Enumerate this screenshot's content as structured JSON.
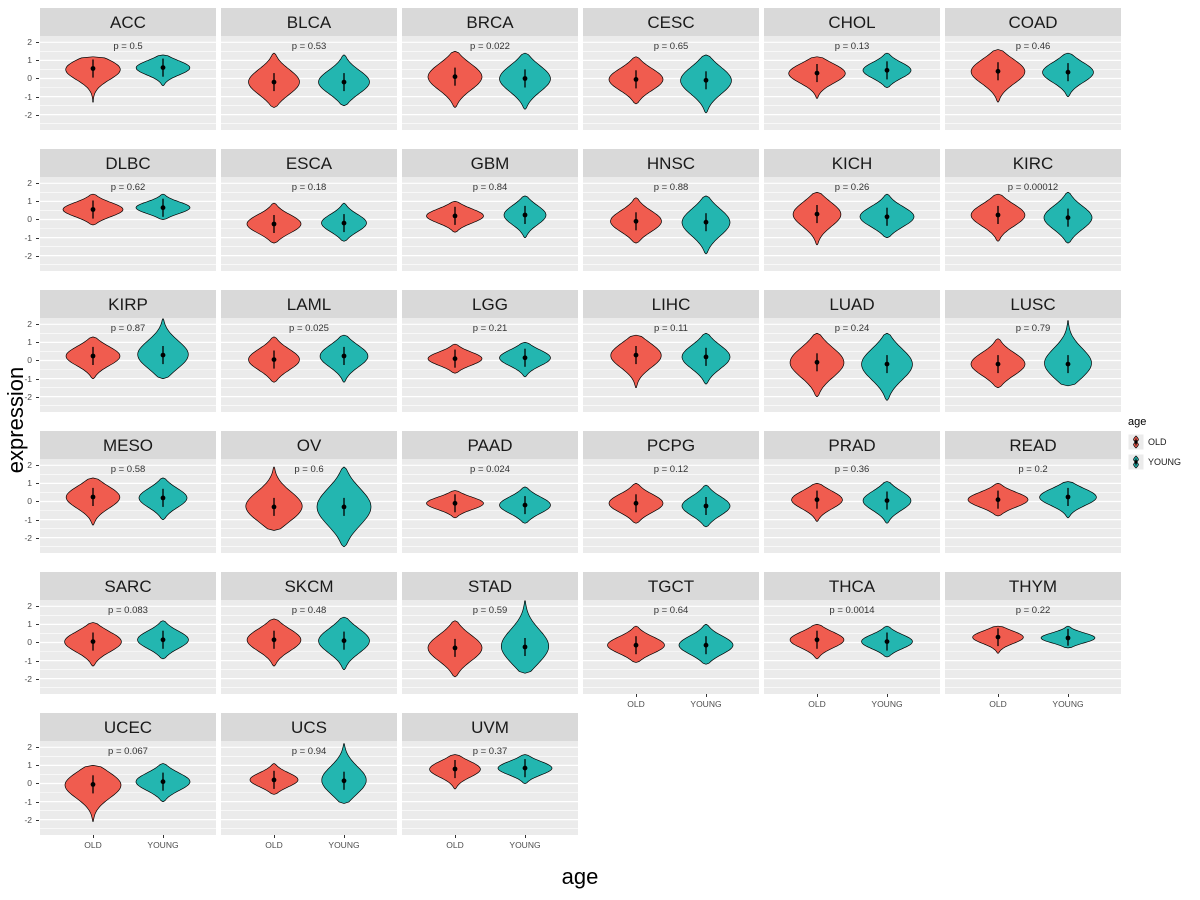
{
  "chart_data": {
    "type": "violin",
    "title": "",
    "xlabel": "age",
    "ylabel": "expression",
    "categories": [
      "OLD",
      "YOUNG"
    ],
    "yticks": [
      2,
      1,
      0,
      -1,
      -2
    ],
    "ylim": [
      -2.85,
      2.35
    ],
    "grid": true,
    "legend": {
      "title": "age",
      "position": "right",
      "entries": [
        {
          "label": "OLD",
          "color": "#F05C4F"
        },
        {
          "label": "YOUNG",
          "color": "#23B6B0"
        }
      ]
    },
    "colors": {
      "old": "#F05C4F",
      "young": "#23B6B0",
      "panel_bg": "#EBEBEB",
      "strip_bg": "#D9D9D9",
      "grid": "#FFFFFF"
    },
    "panels": [
      {
        "name": "ACC",
        "p_label": "p = 0.5",
        "old": {
          "med": 0.55,
          "lo": -1.3,
          "hi": 1.2,
          "w": 0.95
        },
        "young": {
          "med": 0.6,
          "lo": -0.4,
          "hi": 1.3,
          "w": 0.9
        }
      },
      {
        "name": "BLCA",
        "p_label": "p = 0.53",
        "old": {
          "med": -0.2,
          "lo": -1.6,
          "hi": 1.4,
          "w": 0.85
        },
        "young": {
          "med": -0.2,
          "lo": -1.5,
          "hi": 1.3,
          "w": 0.85
        }
      },
      {
        "name": "BRCA",
        "p_label": "p = 0.022",
        "old": {
          "med": 0.1,
          "lo": -1.6,
          "hi": 1.5,
          "w": 0.9
        },
        "young": {
          "med": 0.0,
          "lo": -1.7,
          "hi": 1.4,
          "w": 0.85
        }
      },
      {
        "name": "CESC",
        "p_label": "p = 0.65",
        "old": {
          "med": -0.05,
          "lo": -1.4,
          "hi": 1.2,
          "w": 0.9
        },
        "young": {
          "med": -0.1,
          "lo": -1.9,
          "hi": 1.3,
          "w": 0.85
        }
      },
      {
        "name": "CHOL",
        "p_label": "p = 0.13",
        "old": {
          "med": 0.3,
          "lo": -1.1,
          "hi": 1.2,
          "w": 0.95
        },
        "young": {
          "med": 0.45,
          "lo": -0.5,
          "hi": 1.4,
          "w": 0.8
        }
      },
      {
        "name": "COAD",
        "p_label": "p = 0.46",
        "old": {
          "med": 0.4,
          "lo": -1.3,
          "hi": 1.6,
          "w": 0.9
        },
        "young": {
          "med": 0.35,
          "lo": -1.0,
          "hi": 1.4,
          "w": 0.85
        }
      },
      {
        "name": "DLBC",
        "p_label": "p = 0.62",
        "old": {
          "med": 0.55,
          "lo": -0.3,
          "hi": 1.4,
          "w": 1.0
        },
        "young": {
          "med": 0.65,
          "lo": 0.0,
          "hi": 1.4,
          "w": 0.9
        }
      },
      {
        "name": "ESCA",
        "p_label": "p = 0.18",
        "old": {
          "med": -0.25,
          "lo": -1.3,
          "hi": 0.9,
          "w": 0.9
        },
        "young": {
          "med": -0.2,
          "lo": -1.2,
          "hi": 0.9,
          "w": 0.75
        }
      },
      {
        "name": "GBM",
        "p_label": "p = 0.84",
        "old": {
          "med": 0.2,
          "lo": -0.7,
          "hi": 1.0,
          "w": 0.95
        },
        "young": {
          "med": 0.25,
          "lo": -1.0,
          "hi": 1.3,
          "w": 0.7
        }
      },
      {
        "name": "HNSC",
        "p_label": "p = 0.88",
        "old": {
          "med": -0.1,
          "lo": -1.3,
          "hi": 1.2,
          "w": 0.85
        },
        "young": {
          "med": -0.15,
          "lo": -1.9,
          "hi": 1.3,
          "w": 0.8
        }
      },
      {
        "name": "KICH",
        "p_label": "p = 0.26",
        "old": {
          "med": 0.3,
          "lo": -1.4,
          "hi": 1.5,
          "w": 0.8
        },
        "young": {
          "med": 0.15,
          "lo": -1.0,
          "hi": 1.4,
          "w": 0.9
        }
      },
      {
        "name": "KIRC",
        "p_label": "p = 0.00012",
        "old": {
          "med": 0.25,
          "lo": -1.2,
          "hi": 1.4,
          "w": 0.9
        },
        "young": {
          "med": 0.1,
          "lo": -1.3,
          "hi": 1.5,
          "w": 0.8
        }
      },
      {
        "name": "KIRP",
        "p_label": "p = 0.87",
        "old": {
          "med": 0.25,
          "lo": -1.0,
          "hi": 1.3,
          "w": 0.9
        },
        "young": {
          "med": 0.3,
          "lo": -1.0,
          "hi": 2.3,
          "w": 0.85
        }
      },
      {
        "name": "LAML",
        "p_label": "p = 0.025",
        "old": {
          "med": 0.05,
          "lo": -1.2,
          "hi": 1.3,
          "w": 0.85
        },
        "young": {
          "med": 0.25,
          "lo": -1.2,
          "hi": 1.4,
          "w": 0.8
        }
      },
      {
        "name": "LGG",
        "p_label": "p = 0.21",
        "old": {
          "med": 0.1,
          "lo": -0.7,
          "hi": 0.9,
          "w": 0.9
        },
        "young": {
          "med": 0.15,
          "lo": -0.9,
          "hi": 1.0,
          "w": 0.85
        }
      },
      {
        "name": "LIHC",
        "p_label": "p = 0.11",
        "old": {
          "med": 0.3,
          "lo": -1.5,
          "hi": 1.4,
          "w": 0.85
        },
        "young": {
          "med": 0.2,
          "lo": -1.3,
          "hi": 1.5,
          "w": 0.8
        }
      },
      {
        "name": "LUAD",
        "p_label": "p = 0.24",
        "old": {
          "med": -0.1,
          "lo": -2.0,
          "hi": 1.5,
          "w": 0.9
        },
        "young": {
          "med": -0.2,
          "lo": -2.2,
          "hi": 1.5,
          "w": 0.85
        }
      },
      {
        "name": "LUSC",
        "p_label": "p = 0.79",
        "old": {
          "med": -0.2,
          "lo": -1.5,
          "hi": 1.2,
          "w": 0.9
        },
        "young": {
          "med": -0.2,
          "lo": -1.4,
          "hi": 2.2,
          "w": 0.8
        }
      },
      {
        "name": "MESO",
        "p_label": "p = 0.58",
        "old": {
          "med": 0.25,
          "lo": -1.3,
          "hi": 1.3,
          "w": 0.9
        },
        "young": {
          "med": 0.2,
          "lo": -1.0,
          "hi": 1.3,
          "w": 0.8
        }
      },
      {
        "name": "OV",
        "p_label": "p = 0.6",
        "old": {
          "med": -0.3,
          "lo": -1.6,
          "hi": 1.9,
          "w": 0.95
        },
        "young": {
          "med": -0.3,
          "lo": -2.5,
          "hi": 1.9,
          "w": 0.9
        }
      },
      {
        "name": "PAAD",
        "p_label": "p = 0.024",
        "old": {
          "med": -0.1,
          "lo": -0.9,
          "hi": 0.6,
          "w": 0.95
        },
        "young": {
          "med": -0.2,
          "lo": -1.2,
          "hi": 0.8,
          "w": 0.85
        }
      },
      {
        "name": "PCPG",
        "p_label": "p = 0.12",
        "old": {
          "med": -0.1,
          "lo": -1.2,
          "hi": 1.0,
          "w": 0.9
        },
        "young": {
          "med": -0.25,
          "lo": -1.4,
          "hi": 0.9,
          "w": 0.8
        }
      },
      {
        "name": "PRAD",
        "p_label": "p = 0.36",
        "old": {
          "med": 0.1,
          "lo": -1.1,
          "hi": 1.0,
          "w": 0.85
        },
        "young": {
          "med": 0.05,
          "lo": -1.2,
          "hi": 1.1,
          "w": 0.8
        }
      },
      {
        "name": "READ",
        "p_label": "p = 0.2",
        "old": {
          "med": 0.1,
          "lo": -0.8,
          "hi": 1.0,
          "w": 1.0
        },
        "young": {
          "med": 0.25,
          "lo": -0.9,
          "hi": 1.1,
          "w": 0.95
        }
      },
      {
        "name": "SARC",
        "p_label": "p = 0.083",
        "old": {
          "med": 0.05,
          "lo": -1.3,
          "hi": 1.1,
          "w": 0.95
        },
        "young": {
          "med": 0.15,
          "lo": -0.9,
          "hi": 1.2,
          "w": 0.85
        }
      },
      {
        "name": "SKCM",
        "p_label": "p = 0.48",
        "old": {
          "med": 0.15,
          "lo": -1.3,
          "hi": 1.3,
          "w": 0.9
        },
        "young": {
          "med": 0.1,
          "lo": -1.5,
          "hi": 1.4,
          "w": 0.85
        }
      },
      {
        "name": "STAD",
        "p_label": "p = 0.59",
        "old": {
          "med": -0.3,
          "lo": -1.9,
          "hi": 1.2,
          "w": 0.9
        },
        "young": {
          "med": -0.25,
          "lo": -1.7,
          "hi": 2.3,
          "w": 0.8
        }
      },
      {
        "name": "TGCT",
        "p_label": "p = 0.64",
        "old": {
          "med": -0.15,
          "lo": -1.1,
          "hi": 0.9,
          "w": 0.95
        },
        "young": {
          "med": -0.15,
          "lo": -1.2,
          "hi": 1.0,
          "w": 0.9
        }
      },
      {
        "name": "THCA",
        "p_label": "p = 0.0014",
        "old": {
          "med": 0.15,
          "lo": -0.9,
          "hi": 1.0,
          "w": 0.9
        },
        "young": {
          "med": 0.05,
          "lo": -0.8,
          "hi": 0.9,
          "w": 0.85
        }
      },
      {
        "name": "THYM",
        "p_label": "p = 0.22",
        "old": {
          "med": 0.3,
          "lo": -0.6,
          "hi": 0.9,
          "w": 0.85
        },
        "young": {
          "med": 0.25,
          "lo": -0.3,
          "hi": 0.9,
          "w": 0.9
        }
      },
      {
        "name": "UCEC",
        "p_label": "p = 0.067",
        "old": {
          "med": -0.05,
          "lo": -2.1,
          "hi": 1.0,
          "w": 0.95
        },
        "young": {
          "med": 0.1,
          "lo": -1.0,
          "hi": 1.1,
          "w": 0.9
        }
      },
      {
        "name": "UCS",
        "p_label": "p = 0.94",
        "old": {
          "med": 0.2,
          "lo": -0.6,
          "hi": 1.1,
          "w": 0.8
        },
        "young": {
          "med": 0.15,
          "lo": -1.1,
          "hi": 2.2,
          "w": 0.75
        }
      },
      {
        "name": "UVM",
        "p_label": "p = 0.37",
        "old": {
          "med": 0.8,
          "lo": -0.3,
          "hi": 1.6,
          "w": 0.85
        },
        "young": {
          "med": 0.85,
          "lo": 0.0,
          "hi": 1.6,
          "w": 0.9
        }
      }
    ]
  }
}
